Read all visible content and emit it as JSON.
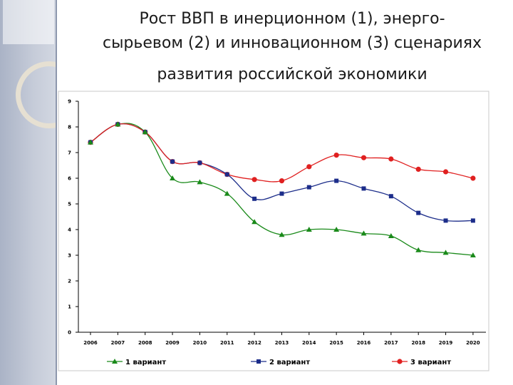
{
  "title": {
    "line1": "Рост ВВП в инерционном (1), энерго-",
    "line2": "сырьевом (2) и инновационном (3) сценариях",
    "line3": "развития российской экономики"
  },
  "chart_data": {
    "type": "line",
    "x": [
      "2006",
      "2007",
      "2008",
      "2009",
      "2010",
      "2011",
      "2012",
      "2013",
      "2014",
      "2015",
      "2016",
      "2017",
      "2018",
      "2019",
      "2020"
    ],
    "ylim": [
      0,
      9
    ],
    "yticks": [
      0,
      1,
      2,
      3,
      4,
      5,
      6,
      7,
      8,
      9
    ],
    "grid": false,
    "legend": "bottom",
    "series": [
      {
        "name": "1 вариант",
        "color": "#1a8a1a",
        "marker": "triangle",
        "values": [
          7.4,
          8.1,
          7.8,
          6.0,
          5.85,
          5.4,
          4.3,
          3.8,
          4.0,
          4.0,
          3.85,
          3.75,
          3.2,
          3.1,
          3.0
        ]
      },
      {
        "name": "2 вариант",
        "color": "#1c2d8a",
        "marker": "square",
        "values": [
          7.4,
          8.1,
          7.8,
          6.65,
          6.6,
          6.15,
          5.2,
          5.4,
          5.65,
          5.9,
          5.6,
          5.3,
          4.65,
          4.35,
          4.35
        ]
      },
      {
        "name": "3 вариант",
        "color": "#e02020",
        "marker": "circle",
        "values": [
          7.4,
          8.1,
          7.8,
          6.65,
          6.6,
          6.15,
          5.95,
          5.9,
          6.45,
          6.9,
          6.8,
          6.75,
          6.35,
          6.25,
          6.0
        ]
      }
    ]
  }
}
